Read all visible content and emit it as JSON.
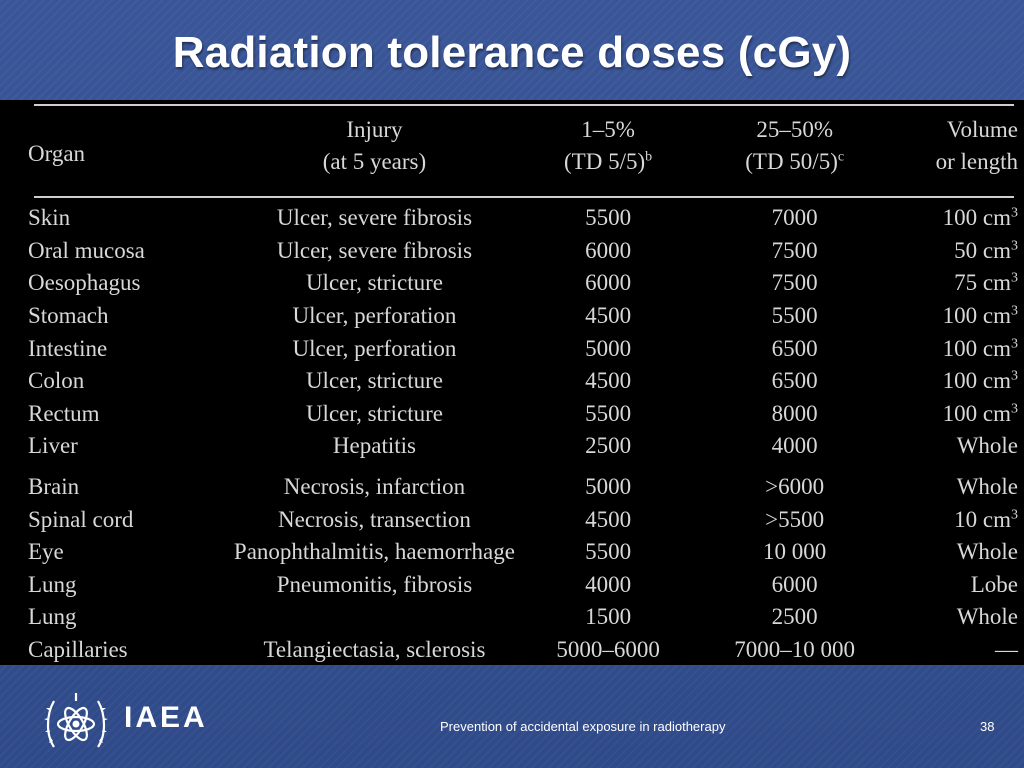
{
  "slide": {
    "title": "Radiation tolerance doses (cGy)",
    "footer_text": "Prevention of accidental exposure in radiotherapy",
    "page_number": "38",
    "logo_text": "IAEA"
  },
  "table": {
    "headers": {
      "organ": "Organ",
      "injury_line1": "Injury",
      "injury_line2": "(at 5 years)",
      "td5_line1": "1–5%",
      "td5_line2": "(TD 5/5)",
      "td5_sup": "b",
      "td50_line1": "25–50%",
      "td50_line2": "(TD 50/5)",
      "td50_sup": "c",
      "vol_line1": "Volume",
      "vol_line2": "or length"
    },
    "rows": [
      {
        "organ": "Skin",
        "injury": "Ulcer, severe fibrosis",
        "td5": "5500",
        "td50": "7000",
        "vol": "100 cm",
        "vol_sup": "3"
      },
      {
        "organ": "Oral mucosa",
        "injury": "Ulcer, severe fibrosis",
        "td5": "6000",
        "td50": "7500",
        "vol": "50 cm",
        "vol_sup": "3"
      },
      {
        "organ": "Oesophagus",
        "injury": "Ulcer, stricture",
        "td5": "6000",
        "td50": "7500",
        "vol": "75 cm",
        "vol_sup": "3"
      },
      {
        "organ": "Stomach",
        "injury": "Ulcer, perforation",
        "td5": "4500",
        "td50": "5500",
        "vol": "100 cm",
        "vol_sup": "3"
      },
      {
        "organ": "Intestine",
        "injury": "Ulcer, perforation",
        "td5": "5000",
        "td50": "6500",
        "vol": "100 cm",
        "vol_sup": "3"
      },
      {
        "organ": "Colon",
        "injury": "Ulcer, stricture",
        "td5": "4500",
        "td50": "6500",
        "vol": "100 cm",
        "vol_sup": "3"
      },
      {
        "organ": "Rectum",
        "injury": "Ulcer, stricture",
        "td5": "5500",
        "td50": "8000",
        "vol": "100 cm",
        "vol_sup": "3"
      },
      {
        "organ": "Liver",
        "injury": "Hepatitis",
        "td5": "2500",
        "td50": "4000",
        "vol": "Whole",
        "vol_sup": ""
      },
      {
        "organ": "Brain",
        "injury": "Necrosis, infarction",
        "td5": "5000",
        "td50": ">6000",
        "vol": "Whole",
        "vol_sup": ""
      },
      {
        "organ": "Spinal cord",
        "injury": "Necrosis, transection",
        "td5": "4500",
        "td50": ">5500",
        "vol": "10 cm",
        "vol_sup": "3"
      },
      {
        "organ": "Eye",
        "injury": "Panophthalmitis, haemorrhage",
        "td5": "5500",
        "td50": "10 000",
        "vol": "Whole",
        "vol_sup": ""
      },
      {
        "organ": "Lung",
        "injury": "Pneumonitis, fibrosis",
        "td5": "4000",
        "td50": "6000",
        "vol": "Lobe",
        "vol_sup": ""
      },
      {
        "organ": "Lung",
        "injury": "",
        "td5": "1500",
        "td50": "2500",
        "vol": "Whole",
        "vol_sup": ""
      },
      {
        "organ": "Capillaries",
        "injury": "Telangiectasia, sclerosis",
        "td5": "5000–6000",
        "td50": "7000–10 000",
        "vol": "—",
        "vol_sup": ""
      }
    ]
  },
  "colors": {
    "background": "#34508f",
    "panel": "#000000",
    "table_text": "#d8d8d8",
    "title_text": "#ffffff"
  }
}
